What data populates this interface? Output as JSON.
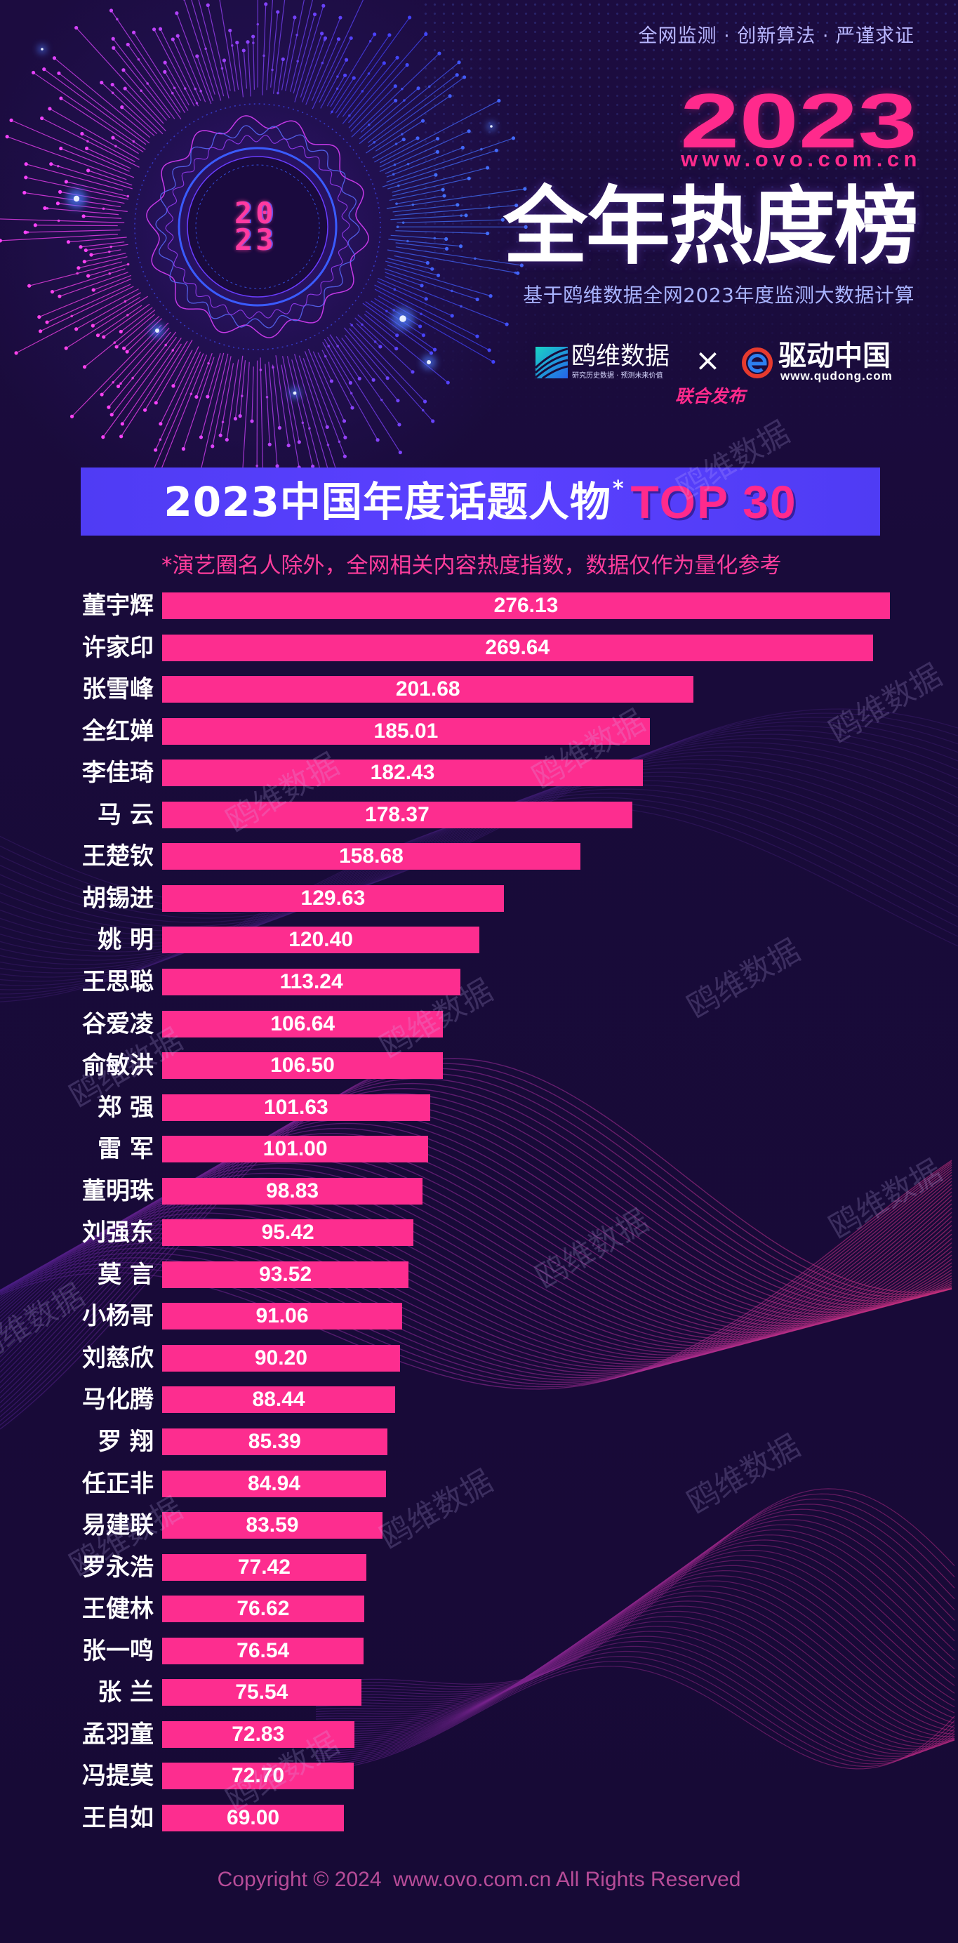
{
  "header": {
    "tagline": "全网监测 · 创新算法 · 严谨求证",
    "year": "2023",
    "website": "www.ovo.com.cn",
    "headline": "全年热度榜",
    "subtitle": "基于鸥维数据全网2023年度监测大数据计算",
    "badge_year": "2023"
  },
  "partners": {
    "owei_name": "鸥维数据",
    "owei_slogan": "研究历史数据 · 预测未来价值",
    "separator": "×",
    "qudong_name": "驱动中国",
    "qudong_url": "www.qudong.com",
    "joint_release": "联合发布",
    "owei_icon": "owei-logo-icon",
    "qudong_icon": "qudong-logo-icon"
  },
  "chart_data": {
    "type": "bar",
    "orientation": "horizontal",
    "title": "2023中国年度话题人物",
    "title_mark": "*",
    "title_highlight": "TOP 30",
    "note": "*演艺圈名人除外，全网相关内容热度指数，数据仅作为量化参考",
    "categories": [
      "董宇辉",
      "许家印",
      "张雪峰",
      "全红婵",
      "李佳琦",
      "马 云",
      "王楚钦",
      "胡锡进",
      "姚 明",
      "王思聪",
      "谷爱凌",
      "俞敏洪",
      "郑 强",
      "雷 军",
      "董明珠",
      "刘强东",
      "莫 言",
      "小杨哥",
      "刘慈欣",
      "马化腾",
      "罗 翔",
      "任正非",
      "易建联",
      "罗永浩",
      "王健林",
      "张一鸣",
      "张 兰",
      "孟羽童",
      "冯提莫",
      "王自如"
    ],
    "values": [
      276.13,
      269.64,
      201.68,
      185.01,
      182.43,
      178.37,
      158.68,
      129.63,
      120.4,
      113.24,
      106.64,
      106.5,
      101.63,
      101.0,
      98.83,
      95.42,
      93.52,
      91.06,
      90.2,
      88.44,
      85.39,
      84.94,
      83.59,
      77.42,
      76.62,
      76.54,
      75.54,
      72.83,
      72.7,
      69.0
    ],
    "xlim": [
      0,
      276.13
    ],
    "grid": false,
    "legend": "none"
  },
  "watermark": "鸥维数据",
  "footer": {
    "copyright": "Copyright © 2024  www.ovo.com.cn All Rights Reserved"
  },
  "colors": {
    "background": "#190c3b",
    "bar": "#fd2d8f",
    "accent_pink": "#ff2a8c",
    "banner": "#5540f7",
    "note": "#ff3d9c",
    "subtitle": "#a9b4ff",
    "footer": "#b74c98"
  }
}
